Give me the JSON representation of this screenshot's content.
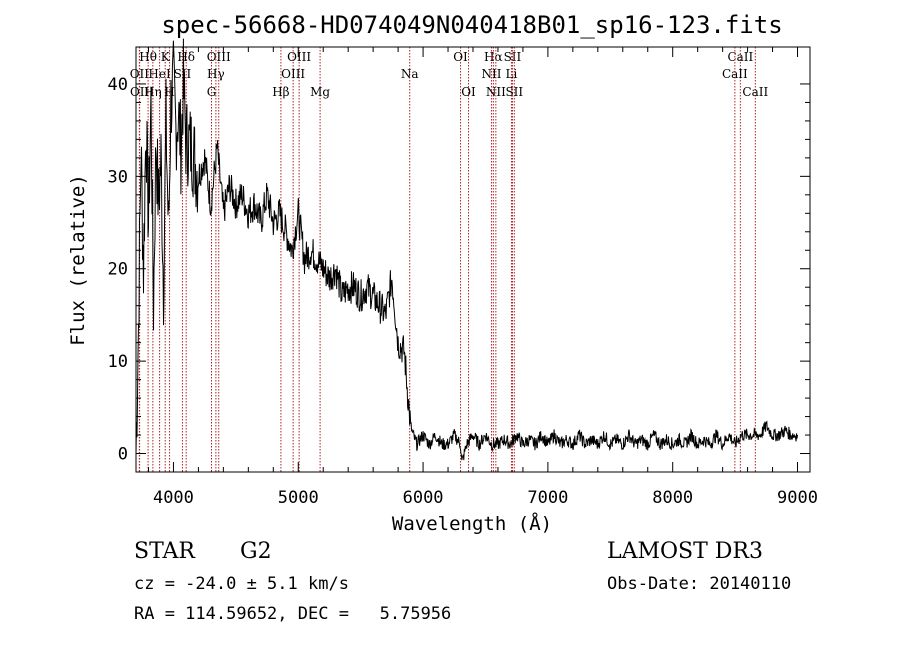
{
  "chart_data": {
    "type": "line",
    "title": "spec-56668-HD074049N040418B01_sp16-123.fits",
    "xlabel": "Wavelength (Å)",
    "ylabel": "Flux (relative)",
    "xlim": [
      3700,
      9100
    ],
    "ylim": [
      -2,
      44
    ],
    "x_ticks": [
      4000,
      5000,
      6000,
      7000,
      8000,
      9000
    ],
    "y_ticks": [
      0,
      10,
      20,
      30,
      40
    ],
    "grid": false,
    "colors": {
      "spectrum": "#000000",
      "line_marker": "#b22222"
    },
    "series": [
      {
        "x": [
          3700,
          3720,
          3740,
          3760,
          3780,
          3800,
          3820,
          3840,
          3860,
          3880,
          3900,
          3920,
          3940,
          3960,
          3980,
          4000,
          4020,
          4040,
          4060,
          4080,
          4100,
          4150,
          4200,
          4250,
          4300,
          4350,
          4400,
          4450,
          4500,
          4550,
          4600,
          4650,
          4700,
          4750,
          4800,
          4850,
          4900,
          4950,
          5000,
          5050,
          5100,
          5150,
          5200,
          5250,
          5300,
          5350,
          5400,
          5450,
          5500,
          5550,
          5600,
          5650,
          5700,
          5750,
          5800,
          5850,
          5880,
          5900,
          5920,
          5950,
          6000,
          6050,
          6100,
          6150,
          6200,
          6250,
          6300,
          6310,
          6350,
          6400,
          6450,
          6500,
          6550,
          6600,
          6650,
          6700,
          6750,
          6800,
          6850,
          6900,
          6950,
          7000,
          7050,
          7100,
          7150,
          7200,
          7250,
          7300,
          7350,
          7400,
          7450,
          7500,
          7550,
          7600,
          7650,
          7700,
          7750,
          7800,
          7850,
          7900,
          7950,
          8000,
          8050,
          8100,
          8150,
          8200,
          8250,
          8300,
          8350,
          8400,
          8450,
          8500,
          8550,
          8600,
          8650,
          8700,
          8750,
          8800,
          8850,
          8900,
          8950,
          9000
        ],
        "y": [
          0,
          14,
          33,
          20,
          36,
          25,
          38,
          16,
          34,
          27,
          32,
          18,
          36,
          24,
          38,
          40,
          35,
          37,
          33,
          40,
          34,
          33,
          30,
          32,
          27,
          33,
          26,
          29,
          27,
          28,
          26,
          27,
          25,
          28,
          25,
          26,
          24,
          22,
          26,
          21,
          22,
          21,
          20,
          19,
          20,
          17,
          18,
          18,
          17,
          18,
          17,
          16,
          15,
          19,
          12,
          11,
          6,
          3,
          2,
          1,
          2,
          1,
          2,
          1,
          1,
          2,
          1,
          -1,
          1,
          2,
          1,
          2,
          1,
          1,
          1.5,
          1,
          2,
          1,
          1.5,
          1,
          2,
          1,
          2,
          1,
          1.5,
          1,
          2,
          1,
          1.5,
          1,
          2,
          1,
          1.5,
          1,
          2,
          1,
          1.5,
          1,
          2,
          1,
          1.5,
          1,
          1.5,
          1,
          2,
          1,
          1.5,
          1,
          2,
          1,
          2,
          1,
          2,
          2,
          2,
          2,
          3,
          2,
          2,
          2.5,
          2,
          2
        ]
      }
    ],
    "line_markers": [
      {
        "label": "Hθ",
        "x": 3797,
        "row": 0
      },
      {
        "label": "K",
        "x": 3934,
        "row": 0
      },
      {
        "label": "Hδ",
        "x": 4102,
        "row": 0
      },
      {
        "label": "OIII",
        "x": 4363,
        "row": 0
      },
      {
        "label": "OIII",
        "x": 5007,
        "row": 0
      },
      {
        "label": "OI",
        "x": 6300,
        "row": 0
      },
      {
        "label": "Hα",
        "x": 6563,
        "row": 0
      },
      {
        "label": "SII",
        "x": 6716,
        "row": 0
      },
      {
        "label": "CaII",
        "x": 8542,
        "row": 0
      },
      {
        "label": "OII",
        "x": 3727,
        "row": 1
      },
      {
        "label": "HeI",
        "x": 3889,
        "row": 1
      },
      {
        "label": "SII",
        "x": 4072,
        "row": 1
      },
      {
        "label": "Hγ",
        "x": 4340,
        "row": 1
      },
      {
        "label": "OIII",
        "x": 4959,
        "row": 1
      },
      {
        "label": "Na",
        "x": 5893,
        "row": 1
      },
      {
        "label": "NII",
        "x": 6548,
        "row": 1
      },
      {
        "label": "Li",
        "x": 6708,
        "row": 1
      },
      {
        "label": "CaII",
        "x": 8498,
        "row": 1
      },
      {
        "label": "OII",
        "x": 3729,
        "row": 2
      },
      {
        "label": "Hη",
        "x": 3835,
        "row": 2
      },
      {
        "label": "H",
        "x": 3969,
        "row": 2
      },
      {
        "label": "G",
        "x": 4305,
        "row": 2
      },
      {
        "label": "Hβ",
        "x": 4861,
        "row": 2
      },
      {
        "label": "Mg",
        "x": 5175,
        "row": 2
      },
      {
        "label": "OI",
        "x": 6364,
        "row": 2
      },
      {
        "label": "NII",
        "x": 6583,
        "row": 2
      },
      {
        "label": "SII",
        "x": 6731,
        "row": 2
      },
      {
        "label": "CaII",
        "x": 8662,
        "row": 2
      }
    ]
  },
  "info": {
    "object_class": "STAR",
    "subclass": "G2",
    "survey": "LAMOST DR3",
    "redshift": "cz = -24.0 ± 5.1 km/s",
    "obs_date": "Obs-Date: 20140110",
    "coords": "RA = 114.59652, DEC =   5.75956"
  }
}
